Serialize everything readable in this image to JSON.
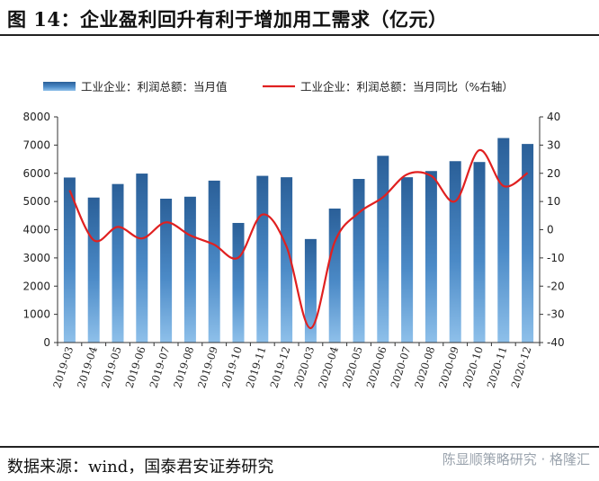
{
  "title": "图 14：企业盈利回升有利于增加用工需求（亿元）",
  "source": "数据来源：wind，国泰君安证券研究",
  "watermark": "陈显顺策略研究 · 格隆汇",
  "chart_data": {
    "type": "bar+line",
    "categories": [
      "2019-03",
      "2019-04",
      "2019-05",
      "2019-06",
      "2019-07",
      "2019-08",
      "2019-09",
      "2019-10",
      "2019-11",
      "2019-12",
      "2020-03",
      "2020-04",
      "2020-05",
      "2020-06",
      "2020-07",
      "2020-08",
      "2020-09",
      "2020-10",
      "2020-11",
      "2020-12"
    ],
    "series": [
      {
        "name": "工业企业：利润总额：当月值",
        "kind": "bar",
        "axis": "left",
        "color": "#2e6aa3",
        "values": [
          5850,
          5140,
          5620,
          5990,
          5100,
          5170,
          5740,
          4240,
          5910,
          5860,
          3670,
          4750,
          5800,
          6620,
          5860,
          6080,
          6430,
          6400,
          7250,
          7040
        ]
      },
      {
        "name": "工业企业：利润总额：当月同比（%右轴）",
        "kind": "line",
        "axis": "right",
        "color": "#e02020",
        "values": [
          14,
          -3.7,
          1,
          -3.1,
          2.6,
          -2,
          -5.3,
          -9.9,
          5.4,
          -6,
          -34.9,
          -4.3,
          6,
          11.5,
          19.6,
          19.1,
          10.1,
          28.2,
          15.5,
          20.1
        ]
      }
    ],
    "y_left": {
      "min": 0,
      "max": 8000,
      "step": 1000
    },
    "y_right": {
      "min": -40,
      "max": 40,
      "step": 10
    },
    "legend_position": "top",
    "grid": false
  }
}
